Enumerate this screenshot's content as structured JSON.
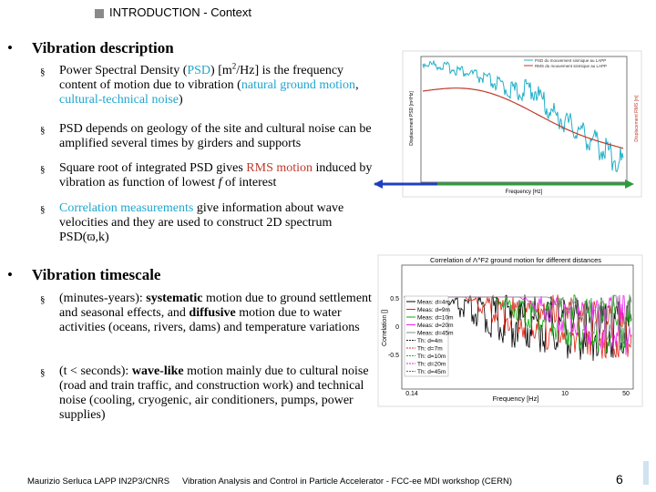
{
  "header": {
    "title": "INTRODUCTION - Context"
  },
  "sections": [
    {
      "heading": "Vibration description",
      "bullets": [
        [
          {
            "text": "Power Spectral Density ("
          },
          {
            "text": "PSD",
            "color": "#1fa6cf"
          },
          {
            "text": ") [m"
          },
          {
            "text": "2",
            "sup": true
          },
          {
            "text": "/Hz] is the frequency content of motion due to vibration ("
          },
          {
            "text": "natural ground motion",
            "color": "#1fa6cf"
          },
          {
            "text": ", "
          },
          {
            "text": "cultural-technical noise",
            "color": "#1fa6cf"
          },
          {
            "text": ")"
          }
        ],
        [
          {
            "text": "PSD depends on geology of the site and cultural noise can be amplified several times by girders and supports"
          }
        ],
        [
          {
            "text": "Square root of integrated PSD gives "
          },
          {
            "text": "RMS motion",
            "color": "#c0392b"
          },
          {
            "text": " induced by vibration as function of lowest "
          },
          {
            "text": "f",
            "italic": true
          },
          {
            "text": " of interest"
          }
        ],
        [
          {
            "text": "Correlation measurements",
            "color": "#1fa6cf"
          },
          {
            "text": " give information about wave velocities and they are used to construct 2D spectrum PSD(ϖ,k)"
          }
        ]
      ]
    },
    {
      "heading": "Vibration timescale",
      "bullets": [
        [
          {
            "text": "(minutes-years): "
          },
          {
            "text": "systematic",
            "bold": true
          },
          {
            "text": " motion due to ground settlement and seasonal effects, and "
          },
          {
            "text": "diffusive",
            "bold": true
          },
          {
            "text": " motion due to water activities (oceans, rivers, dams) and temperature variations"
          }
        ],
        [
          {
            "text": "(t < seconds): "
          },
          {
            "text": "wave-like",
            "bold": true
          },
          {
            "text": " motion mainly due to cultural noise (road and train traffic, and construction work) and technical noise (cooling, cryogenic, air conditioners, pumps, power supplies)"
          }
        ]
      ]
    }
  ],
  "figure_psd": {
    "legend": [
      "PSD du mouvement sismique au LAPP",
      "RMS du mouvement sismique au LAPP"
    ],
    "xlabel": "Frequency [Hz]",
    "ylabel": "Displacement PSD [m²/Hz]",
    "y2label": "Displacement RMS [m]"
  },
  "figure_corr": {
    "title": "Correlation of Λ^F2 ground motion for different distances",
    "ylabel": "Correlation []",
    "xlabel": "Frequency [Hz]",
    "yticks": [
      "0.5",
      "0",
      "-0.5"
    ],
    "xticks": [
      "0.14",
      "10",
      "50"
    ],
    "legend": [
      "Meas: d=4m",
      "Meas: d=9m",
      "Meas: d=10m",
      "Meas: d=20m",
      "Meas: d=45m",
      "Th: d=4m",
      "Th: d=7m",
      "Th: d=10m",
      "Th: d=20m",
      "Th: d=45m"
    ]
  },
  "footer": {
    "author": "Maurizio Serluca LAPP IN2P3/CNRS",
    "event": "Vibration Analysis and Control in Particle Accelerator - FCC-ee MDI workshop (CERN)",
    "page": "6"
  }
}
